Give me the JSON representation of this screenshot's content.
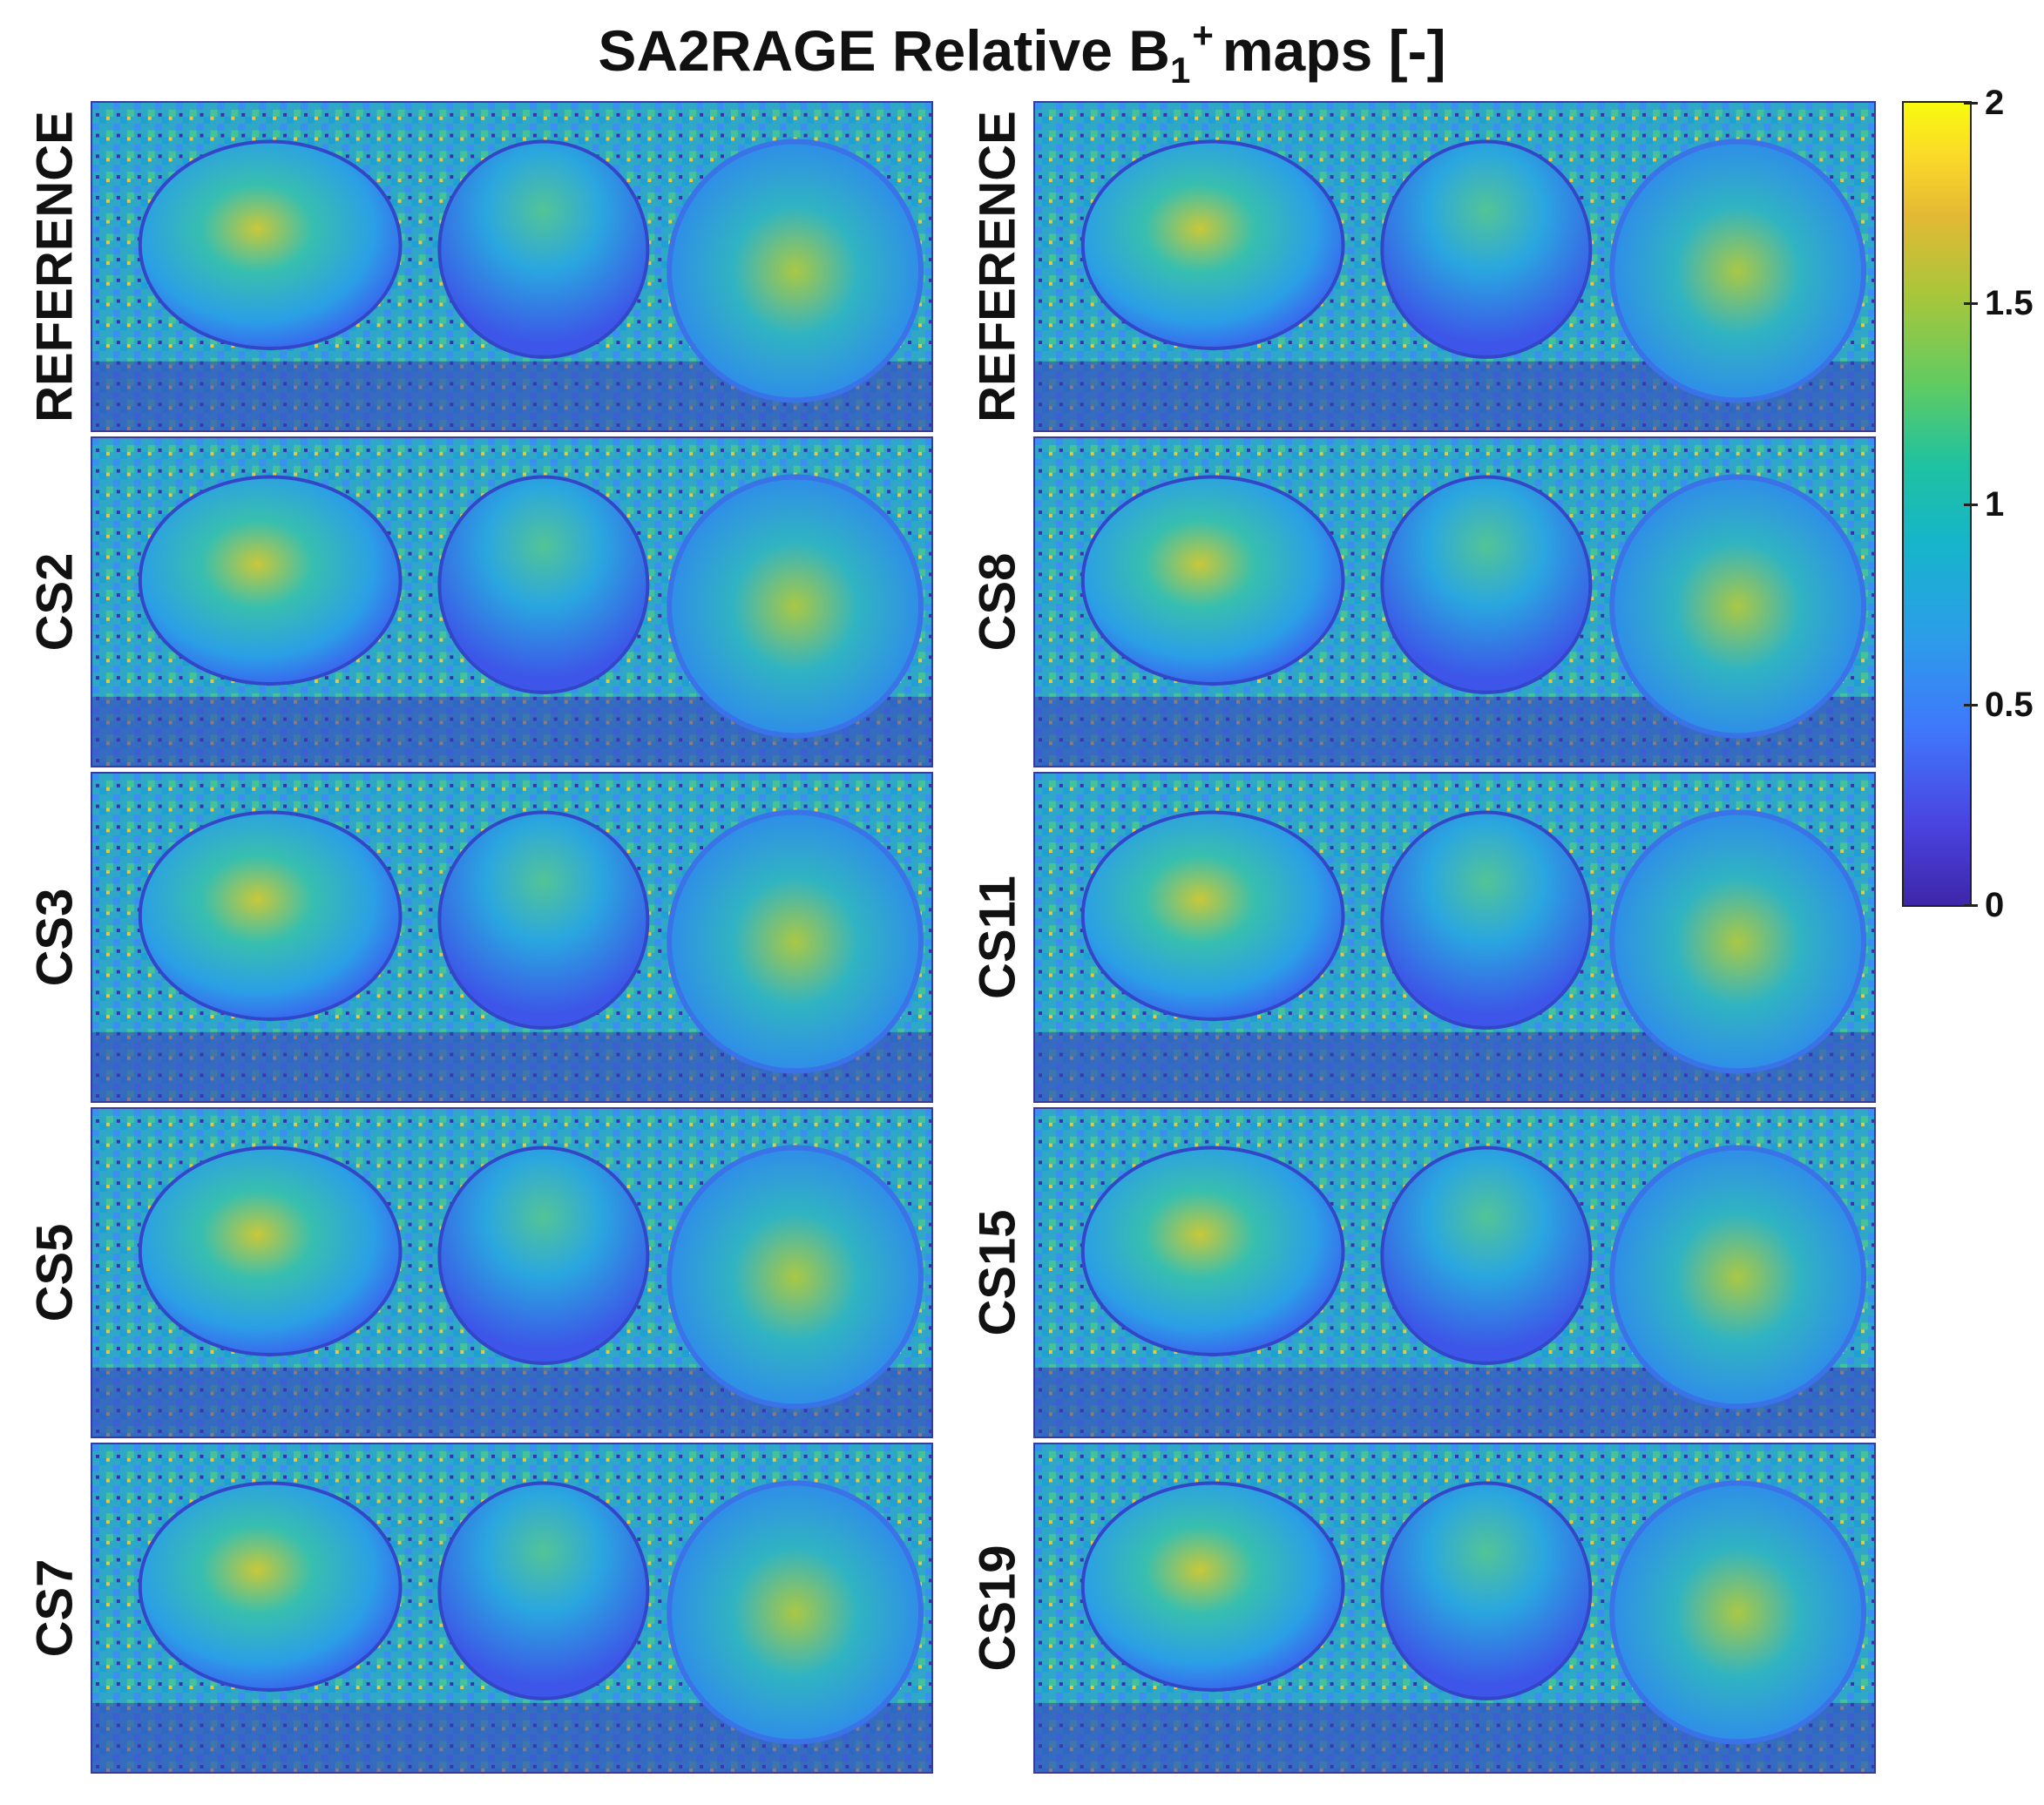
{
  "figure": {
    "title_main": "SA2RAGE Relative B",
    "title_sub": "1",
    "title_sup": "+",
    "title_suffix": "maps [-]"
  },
  "panels_left": [
    "REFERENCE",
    "CS2",
    "CS3",
    "CS5",
    "CS7"
  ],
  "panels_right": [
    "REFERENCE",
    "CS8",
    "CS11",
    "CS15",
    "CS19"
  ],
  "colorbar": {
    "colormap": "parula",
    "range": [
      0,
      2
    ],
    "ticks": [
      "2",
      "1.5",
      "1",
      "0.5",
      "0"
    ]
  },
  "colors": {
    "low": "#3e26a8",
    "mid": "#1fc2a0",
    "high": "#f9fb0e"
  }
}
